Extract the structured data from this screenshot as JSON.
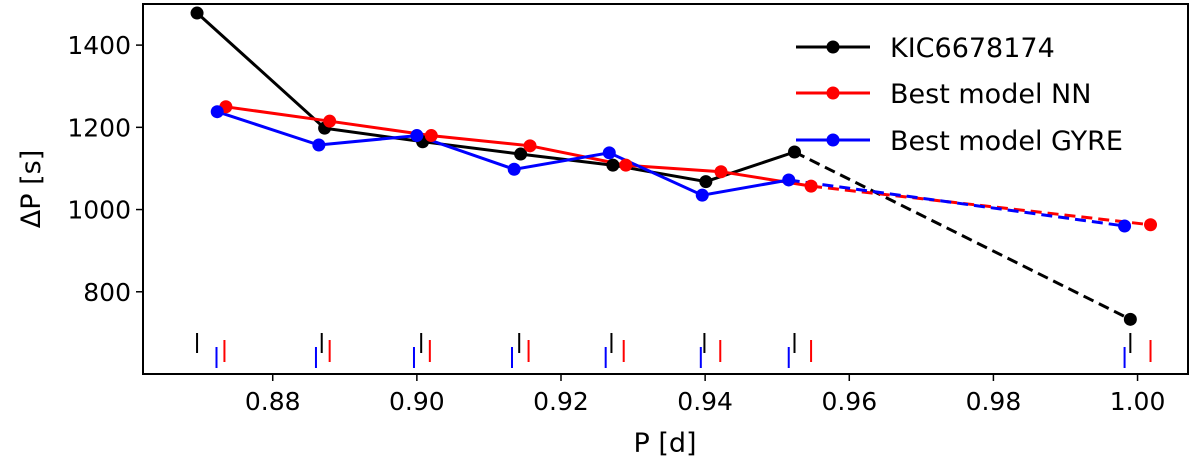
{
  "chart_data": {
    "type": "line",
    "title": "",
    "xlabel": "P [d]",
    "ylabel": "ΔP [s]",
    "xlim": [
      0.862,
      1.007
    ],
    "ylim": [
      600,
      1500
    ],
    "x_ticks": [
      0.88,
      0.9,
      0.92,
      0.94,
      0.96,
      0.98,
      1.0
    ],
    "x_tick_labels": [
      "0.88",
      "0.90",
      "0.92",
      "0.94",
      "0.96",
      "0.98",
      "1.00"
    ],
    "y_ticks": [
      800,
      1000,
      1200,
      1400
    ],
    "y_tick_labels": [
      "800",
      "1000",
      "1200",
      "1400"
    ],
    "grid": false,
    "legend_position": "top-right",
    "series": [
      {
        "name": "KIC6678174",
        "color": "#000000",
        "x": [
          0.8695,
          0.8872,
          0.9008,
          0.9144,
          0.9272,
          0.9401,
          0.9524,
          0.999
        ],
        "y": [
          1478,
          1198,
          1165,
          1135,
          1108,
          1068,
          1140,
          733
        ],
        "dashed_after_index": 6,
        "period_marks": [
          0.8695,
          0.8868,
          0.9006,
          0.9142,
          0.927,
          0.9399,
          0.9524,
          0.999
        ]
      },
      {
        "name": "Best model NN",
        "color": "#ff0000",
        "x": [
          0.8735,
          0.8879,
          0.902,
          0.9157,
          0.929,
          0.9422,
          0.9547,
          1.0018
        ],
        "y": [
          1250,
          1215,
          1180,
          1155,
          1108,
          1092,
          1057,
          963
        ],
        "dashed_after_index": 6,
        "period_marks": [
          0.8733,
          0.8879,
          0.9018,
          0.9155,
          0.9287,
          0.9421,
          0.9547,
          1.0018
        ]
      },
      {
        "name": "Best model GYRE",
        "color": "#0000ff",
        "x": [
          0.8723,
          0.8864,
          0.9,
          0.9135,
          0.9267,
          0.9396,
          0.9516,
          0.9982
        ],
        "y": [
          1238,
          1157,
          1180,
          1098,
          1138,
          1035,
          1072,
          960
        ],
        "dashed_after_index": 6,
        "period_marks": [
          0.8722,
          0.886,
          0.8996,
          0.9132,
          0.9262,
          0.9394,
          0.9516,
          0.9982
        ]
      }
    ]
  }
}
